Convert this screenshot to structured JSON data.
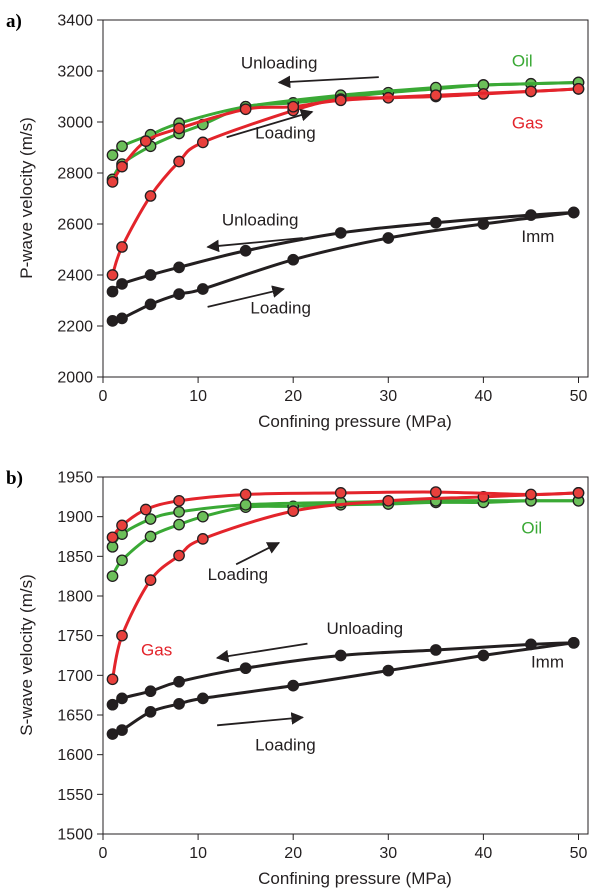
{
  "colors": {
    "oil": "#3aa935",
    "gas": "#e3242b",
    "imm": "#231f20",
    "oil_marker": "#6cbf5a",
    "gas_marker": "#e8403c",
    "imm_marker": "#231f20"
  },
  "chart_data": [
    {
      "panel_label": "a)",
      "type": "line",
      "xlabel": "Confining pressure (MPa)",
      "ylabel": "P-wave velocity (m/s)",
      "xlim": [
        0,
        51
      ],
      "ylim": [
        2000,
        3400
      ],
      "xticks": [
        0,
        10,
        20,
        30,
        40,
        50
      ],
      "yticks": [
        2000,
        2200,
        2400,
        2600,
        2800,
        3000,
        3200,
        3400
      ],
      "grid": false,
      "series": [
        {
          "name": "Oil",
          "fluid": "oil",
          "branch": "loading",
          "x": [
            1,
            2,
            5,
            8,
            10.5,
            15,
            20,
            25,
            30,
            35,
            40,
            45,
            50
          ],
          "y": [
            2775,
            2835,
            2905,
            2955,
            2990,
            3060,
            3075,
            3095,
            3115,
            3130,
            3145,
            3150,
            3155
          ]
        },
        {
          "name": "Oil",
          "fluid": "oil",
          "branch": "unloading",
          "x": [
            1,
            2,
            5,
            8,
            15,
            25,
            35,
            40,
            50
          ],
          "y": [
            2870,
            2905,
            2950,
            2995,
            3060,
            3105,
            3135,
            3145,
            3155
          ]
        },
        {
          "name": "Gas",
          "fluid": "gas",
          "branch": "loading",
          "x": [
            1,
            2,
            5,
            8,
            10.5,
            20,
            25,
            30,
            35,
            40,
            45,
            50
          ],
          "y": [
            2400,
            2510,
            2710,
            2845,
            2920,
            3045,
            3090,
            3095,
            3100,
            3110,
            3120,
            3130
          ]
        },
        {
          "name": "Gas",
          "fluid": "gas",
          "branch": "unloading",
          "x": [
            1,
            2,
            4.5,
            8,
            15,
            20,
            25,
            35,
            45,
            50
          ],
          "y": [
            2765,
            2825,
            2925,
            2975,
            3050,
            3060,
            3085,
            3105,
            3120,
            3130
          ]
        },
        {
          "name": "Imm",
          "fluid": "imm",
          "branch": "loading",
          "x": [
            1,
            2,
            5,
            8,
            10.5,
            20,
            30,
            40,
            49.5
          ],
          "y": [
            2220,
            2230,
            2285,
            2325,
            2345,
            2460,
            2545,
            2600,
            2645
          ]
        },
        {
          "name": "Imm",
          "fluid": "imm",
          "branch": "unloading",
          "x": [
            1,
            2,
            5,
            8,
            15,
            25,
            35,
            45,
            49.5
          ],
          "y": [
            2335,
            2365,
            2400,
            2430,
            2495,
            2565,
            2605,
            2635,
            2645
          ]
        }
      ],
      "annotations": [
        {
          "id": "unloading-top",
          "text": "Unloading",
          "color": "imm",
          "x": 14.5,
          "y": 3210,
          "arrow": {
            "from": [
              29,
              3176
            ],
            "to": [
              18.5,
              3155
            ]
          }
        },
        {
          "id": "loading-top",
          "text": "Loading",
          "color": "imm",
          "x": 16,
          "y": 2935,
          "arrow": {
            "from": [
              13,
              2940
            ],
            "to": [
              22,
              3040
            ]
          }
        },
        {
          "id": "unloading-bottom",
          "text": "Unloading",
          "color": "imm",
          "x": 12.5,
          "y": 2595,
          "arrow": {
            "from": [
              21,
              2545
            ],
            "to": [
              11,
              2510
            ]
          }
        },
        {
          "id": "loading-bottom",
          "text": "Loading",
          "color": "imm",
          "x": 15.5,
          "y": 2250,
          "arrow": {
            "from": [
              11,
              2275
            ],
            "to": [
              19,
              2345
            ]
          }
        },
        {
          "id": "label-oil",
          "text": "Oil",
          "color": "oil",
          "x": 43,
          "y": 3218
        },
        {
          "id": "label-gas",
          "text": "Gas",
          "color": "gas",
          "x": 43,
          "y": 2975
        },
        {
          "id": "label-imm",
          "text": "Imm",
          "color": "imm",
          "x": 44,
          "y": 2530
        }
      ]
    },
    {
      "panel_label": "b)",
      "type": "line",
      "xlabel": "Confining pressure (MPa)",
      "ylabel": "S-wave velocity (m/s)",
      "xlim": [
        0,
        51
      ],
      "ylim": [
        1500,
        1950
      ],
      "xticks": [
        0,
        10,
        20,
        30,
        40,
        50
      ],
      "yticks": [
        1500,
        1550,
        1600,
        1650,
        1700,
        1750,
        1800,
        1850,
        1900,
        1950
      ],
      "grid": false,
      "series": [
        {
          "name": "Oil",
          "fluid": "oil",
          "branch": "loading",
          "x": [
            1,
            2,
            5,
            8,
            10.5,
            15,
            20,
            25,
            30,
            35,
            40,
            45,
            50
          ],
          "y": [
            1825,
            1845,
            1875,
            1890,
            1900,
            1912,
            1913,
            1915,
            1916,
            1918,
            1918,
            1920,
            1920
          ]
        },
        {
          "name": "Oil",
          "fluid": "oil",
          "branch": "unloading",
          "x": [
            1,
            2,
            5,
            8,
            15,
            25,
            35,
            45,
            50
          ],
          "y": [
            1862,
            1878,
            1897,
            1906,
            1915,
            1918,
            1920,
            1920,
            1920
          ]
        },
        {
          "name": "Gas",
          "fluid": "gas",
          "branch": "loading",
          "x": [
            1,
            2,
            5,
            8,
            10.5,
            20,
            30,
            40,
            50
          ],
          "y": [
            1695,
            1750,
            1820,
            1851,
            1872,
            1907,
            1920,
            1925,
            1930
          ]
        },
        {
          "name": "Gas",
          "fluid": "gas",
          "branch": "unloading",
          "x": [
            1,
            2,
            4.5,
            8,
            15,
            25,
            35,
            45,
            50
          ],
          "y": [
            1874,
            1889,
            1909,
            1920,
            1928,
            1930,
            1931,
            1928,
            1930
          ]
        },
        {
          "name": "Imm",
          "fluid": "imm",
          "branch": "loading",
          "x": [
            1,
            2,
            5,
            8,
            10.5,
            20,
            30,
            40,
            49.5
          ],
          "y": [
            1626,
            1631,
            1654,
            1664,
            1671,
            1687,
            1706,
            1725,
            1741
          ]
        },
        {
          "name": "Imm",
          "fluid": "imm",
          "branch": "unloading",
          "x": [
            1,
            2,
            5,
            8,
            15,
            25,
            35,
            45,
            49.5
          ],
          "y": [
            1663,
            1671,
            1680,
            1692,
            1709,
            1725,
            1732,
            1739,
            1741
          ]
        }
      ],
      "annotations": [
        {
          "id": "loading-top",
          "text": "Loading",
          "color": "imm",
          "x": 11,
          "y": 1820,
          "arrow": {
            "from": [
              14,
              1840
            ],
            "to": [
              18.5,
              1867
            ]
          }
        },
        {
          "id": "unloading-top",
          "text": "Unloading",
          "color": "imm",
          "x": 23.5,
          "y": 1752,
          "arrow": {
            "from": [
              21.5,
              1740
            ],
            "to": [
              12,
              1722
            ]
          }
        },
        {
          "id": "loading-bottom",
          "text": "Loading",
          "color": "imm",
          "x": 16,
          "y": 1605,
          "arrow": {
            "from": [
              12,
              1637
            ],
            "to": [
              21,
              1647
            ]
          }
        },
        {
          "id": "label-gas",
          "text": "Gas",
          "color": "gas",
          "x": 4,
          "y": 1725
        },
        {
          "id": "label-oil",
          "text": "Oil",
          "color": "oil",
          "x": 44,
          "y": 1879
        },
        {
          "id": "label-imm",
          "text": "Imm",
          "color": "imm",
          "x": 45,
          "y": 1710
        }
      ]
    }
  ]
}
